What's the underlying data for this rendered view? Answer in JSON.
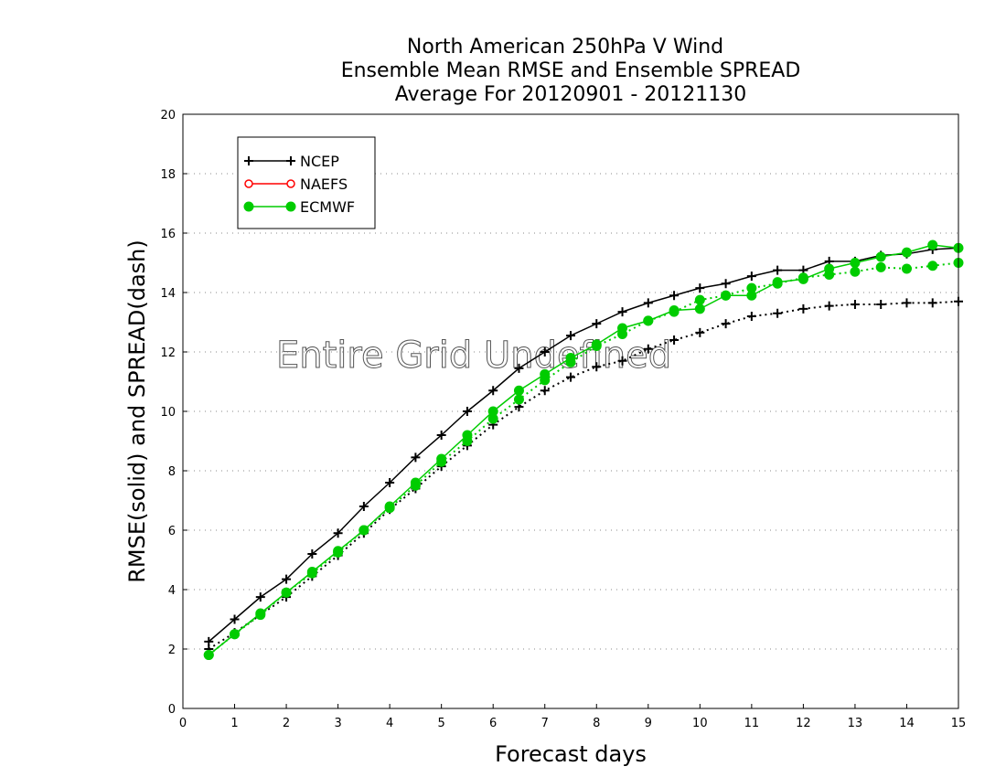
{
  "chart_data": {
    "type": "line",
    "title": [
      "North American 250hPa V Wind",
      "Ensemble Mean RMSE and Ensemble SPREAD",
      "Average For 20120901 - 20121130"
    ],
    "xlabel": "Forecast days",
    "ylabel": "RMSE(solid) and SPREAD(dash)",
    "xlim": [
      0,
      15
    ],
    "ylim": [
      0,
      20
    ],
    "xticks": [
      "0",
      "1",
      "2",
      "3",
      "4",
      "5",
      "6",
      "7",
      "8",
      "9",
      "10",
      "11",
      "12",
      "13",
      "14",
      "15"
    ],
    "yticks": [
      "0",
      "2",
      "4",
      "6",
      "8",
      "10",
      "12",
      "14",
      "16",
      "18",
      "20"
    ],
    "grid": "horizontal dotted",
    "legend_position": "top-left",
    "watermark": "Entire Grid Undefined",
    "x": [
      0.5,
      1,
      1.5,
      2,
      2.5,
      3,
      3.5,
      4,
      4.5,
      5,
      5.5,
      6,
      6.5,
      7,
      7.5,
      8,
      8.5,
      9,
      9.5,
      10,
      10.5,
      11,
      11.5,
      12,
      12.5,
      13,
      13.5,
      14,
      14.5,
      15
    ],
    "series": [
      {
        "name": "NCEP",
        "color": "#000000",
        "marker": "plus",
        "rmse": [
          2.25,
          3.0,
          3.75,
          4.35,
          5.2,
          5.9,
          6.8,
          7.6,
          8.45,
          9.2,
          10.0,
          10.7,
          11.45,
          12.0,
          12.55,
          12.95,
          13.35,
          13.65,
          13.9,
          14.15,
          14.3,
          14.55,
          14.75,
          14.75,
          15.05,
          15.05,
          15.25,
          15.3,
          15.45,
          15.5
        ],
        "spread": [
          2.0,
          2.55,
          3.15,
          3.75,
          4.45,
          5.15,
          5.9,
          6.7,
          7.4,
          8.15,
          8.85,
          9.55,
          10.15,
          10.7,
          11.15,
          11.5,
          11.7,
          12.1,
          12.4,
          12.65,
          12.95,
          13.2,
          13.3,
          13.45,
          13.55,
          13.6,
          13.6,
          13.65,
          13.65,
          13.7
        ]
      },
      {
        "name": "NAEFS",
        "color": "#ff0000",
        "marker": "open-circle",
        "rmse": [],
        "spread": []
      },
      {
        "name": "ECMWF",
        "color": "#00cc00",
        "marker": "filled-circle",
        "rmse": [
          1.8,
          2.5,
          3.2,
          3.9,
          4.6,
          5.3,
          6.0,
          6.8,
          7.6,
          8.4,
          9.2,
          10.0,
          10.7,
          11.25,
          11.8,
          12.25,
          12.8,
          13.05,
          13.4,
          13.45,
          13.9,
          13.9,
          14.35,
          14.45,
          14.8,
          15.0,
          15.2,
          15.35,
          15.6,
          15.5
        ],
        "spread": [
          1.8,
          2.5,
          3.15,
          3.9,
          4.55,
          5.25,
          6.0,
          6.75,
          7.5,
          8.3,
          9.0,
          9.75,
          10.4,
          11.05,
          11.65,
          12.2,
          12.6,
          13.05,
          13.35,
          13.75,
          13.9,
          14.15,
          14.3,
          14.5,
          14.6,
          14.7,
          14.85,
          14.8,
          14.9,
          15.0
        ]
      }
    ]
  }
}
